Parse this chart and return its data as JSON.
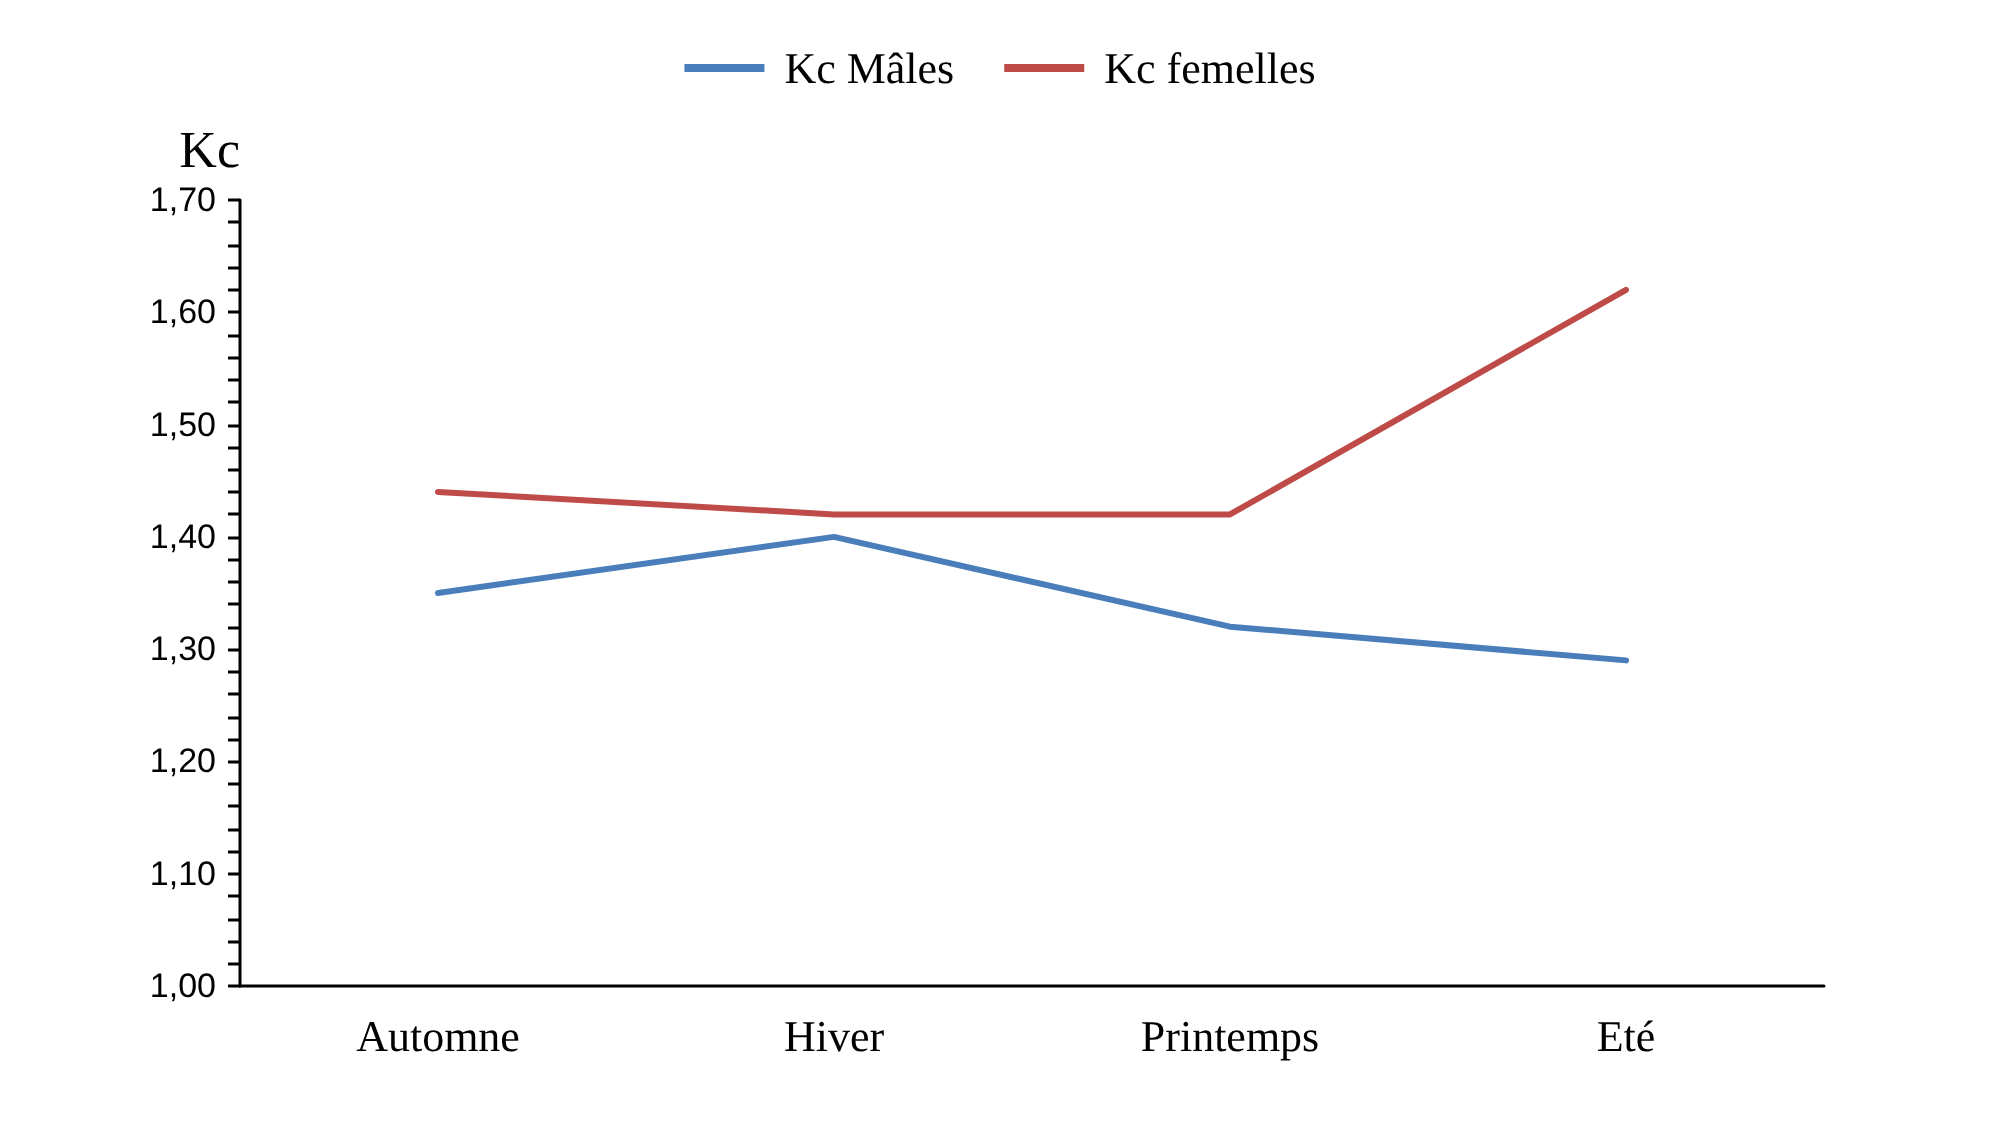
{
  "chart_data": {
    "type": "line",
    "ylabel": "Kc",
    "categories": [
      "Automne",
      "Hiver",
      "Printemps",
      "Eté"
    ],
    "series": [
      {
        "name": "Kc Mâles",
        "color": "#4a7ebb",
        "values": [
          1.35,
          1.4,
          1.32,
          1.29
        ]
      },
      {
        "name": "Kc femelles",
        "color": "#be4b48",
        "values": [
          1.44,
          1.42,
          1.42,
          1.62
        ]
      }
    ],
    "ylim": [
      1.0,
      1.7
    ],
    "yticks": [
      {
        "value": 1.0,
        "label": "1,00"
      },
      {
        "value": 1.02,
        "label": null
      },
      {
        "value": 1.04,
        "label": null
      },
      {
        "value": 1.06,
        "label": null
      },
      {
        "value": 1.08,
        "label": null
      },
      {
        "value": 1.1,
        "label": "1,10"
      },
      {
        "value": 1.12,
        "label": null
      },
      {
        "value": 1.14,
        "label": null
      },
      {
        "value": 1.16,
        "label": null
      },
      {
        "value": 1.18,
        "label": null
      },
      {
        "value": 1.2,
        "label": "1,20"
      },
      {
        "value": 1.22,
        "label": null
      },
      {
        "value": 1.24,
        "label": null
      },
      {
        "value": 1.26,
        "label": null
      },
      {
        "value": 1.28,
        "label": null
      },
      {
        "value": 1.3,
        "label": "1,30"
      },
      {
        "value": 1.32,
        "label": null
      },
      {
        "value": 1.34,
        "label": null
      },
      {
        "value": 1.36,
        "label": null
      },
      {
        "value": 1.38,
        "label": null
      },
      {
        "value": 1.4,
        "label": "1,40"
      },
      {
        "value": 1.42,
        "label": null
      },
      {
        "value": 1.44,
        "label": null
      },
      {
        "value": 1.46,
        "label": null
      },
      {
        "value": 1.48,
        "label": null
      },
      {
        "value": 1.5,
        "label": "1,50"
      },
      {
        "value": 1.52,
        "label": null
      },
      {
        "value": 1.54,
        "label": null
      },
      {
        "value": 1.56,
        "label": null
      },
      {
        "value": 1.58,
        "label": null
      },
      {
        "value": 1.6,
        "label": "1,60"
      },
      {
        "value": 1.62,
        "label": null
      },
      {
        "value": 1.64,
        "label": null
      },
      {
        "value": 1.66,
        "label": null
      },
      {
        "value": 1.68,
        "label": null
      },
      {
        "value": 1.7,
        "label": "1,70"
      }
    ],
    "grid": false,
    "legend": "top",
    "marker": "none",
    "line_style": "solid"
  }
}
